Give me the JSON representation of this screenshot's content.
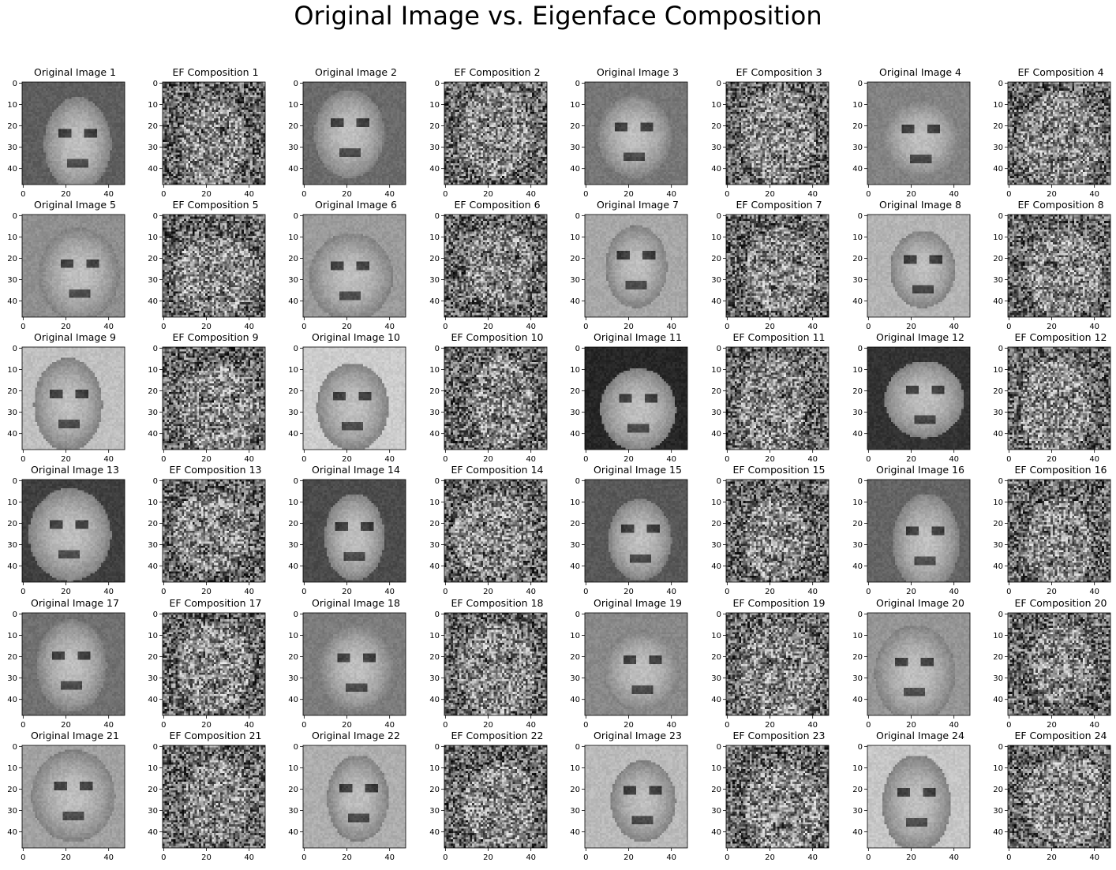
{
  "figure": {
    "title": "Original Image vs. Eigenface Composition"
  },
  "axes": {
    "xticks": [
      "0",
      "20",
      "40"
    ],
    "yticks": [
      "0",
      "10",
      "20",
      "30",
      "40"
    ],
    "colormap": "gray"
  },
  "panels": [
    {
      "title": "Original Image 1",
      "kind": "original",
      "index": 1
    },
    {
      "title": "EF Composition  1",
      "kind": "composition",
      "index": 1
    },
    {
      "title": "Original Image 2",
      "kind": "original",
      "index": 2
    },
    {
      "title": "EF Composition  2",
      "kind": "composition",
      "index": 2
    },
    {
      "title": "Original Image 3",
      "kind": "original",
      "index": 3
    },
    {
      "title": "EF Composition  3",
      "kind": "composition",
      "index": 3
    },
    {
      "title": "Original Image 4",
      "kind": "original",
      "index": 4
    },
    {
      "title": "EF Composition  4",
      "kind": "composition",
      "index": 4
    },
    {
      "title": "Original Image 5",
      "kind": "original",
      "index": 5
    },
    {
      "title": "EF Composition  5",
      "kind": "composition",
      "index": 5
    },
    {
      "title": "Original Image 6",
      "kind": "original",
      "index": 6
    },
    {
      "title": "EF Composition  6",
      "kind": "composition",
      "index": 6
    },
    {
      "title": "Original Image 7",
      "kind": "original",
      "index": 7
    },
    {
      "title": "EF Composition  7",
      "kind": "composition",
      "index": 7
    },
    {
      "title": "Original Image 8",
      "kind": "original",
      "index": 8
    },
    {
      "title": "EF Composition  8",
      "kind": "composition",
      "index": 8
    },
    {
      "title": "Original Image 9",
      "kind": "original",
      "index": 9
    },
    {
      "title": "EF Composition  9",
      "kind": "composition",
      "index": 9
    },
    {
      "title": "Original Image 10",
      "kind": "original",
      "index": 10
    },
    {
      "title": "EF Composition  10",
      "kind": "composition",
      "index": 10
    },
    {
      "title": "Original Image 11",
      "kind": "original",
      "index": 11
    },
    {
      "title": "EF Composition  11",
      "kind": "composition",
      "index": 11
    },
    {
      "title": "Original Image 12",
      "kind": "original",
      "index": 12
    },
    {
      "title": "EF Composition  12",
      "kind": "composition",
      "index": 12
    },
    {
      "title": "Original Image 13",
      "kind": "original",
      "index": 13
    },
    {
      "title": "EF Composition  13",
      "kind": "composition",
      "index": 13
    },
    {
      "title": "Original Image 14",
      "kind": "original",
      "index": 14
    },
    {
      "title": "EF Composition  14",
      "kind": "composition",
      "index": 14
    },
    {
      "title": "Original Image 15",
      "kind": "original",
      "index": 15
    },
    {
      "title": "EF Composition  15",
      "kind": "composition",
      "index": 15
    },
    {
      "title": "Original Image 16",
      "kind": "original",
      "index": 16
    },
    {
      "title": "EF Composition  16",
      "kind": "composition",
      "index": 16
    },
    {
      "title": "Original Image 17",
      "kind": "original",
      "index": 17
    },
    {
      "title": "EF Composition  17",
      "kind": "composition",
      "index": 17
    },
    {
      "title": "Original Image 18",
      "kind": "original",
      "index": 18
    },
    {
      "title": "EF Composition  18",
      "kind": "composition",
      "index": 18
    },
    {
      "title": "Original Image 19",
      "kind": "original",
      "index": 19
    },
    {
      "title": "EF Composition  19",
      "kind": "composition",
      "index": 19
    },
    {
      "title": "Original Image 20",
      "kind": "original",
      "index": 20
    },
    {
      "title": "EF Composition  20",
      "kind": "composition",
      "index": 20
    },
    {
      "title": "Original Image 21",
      "kind": "original",
      "index": 21
    },
    {
      "title": "EF Composition  21",
      "kind": "composition",
      "index": 21
    },
    {
      "title": "Original Image 22",
      "kind": "original",
      "index": 22
    },
    {
      "title": "EF Composition  22",
      "kind": "composition",
      "index": 22
    },
    {
      "title": "Original Image 23",
      "kind": "original",
      "index": 23
    },
    {
      "title": "EF Composition  23",
      "kind": "composition",
      "index": 23
    },
    {
      "title": "Original Image 24",
      "kind": "original",
      "index": 24
    },
    {
      "title": "EF Composition  24",
      "kind": "composition",
      "index": 24
    }
  ]
}
